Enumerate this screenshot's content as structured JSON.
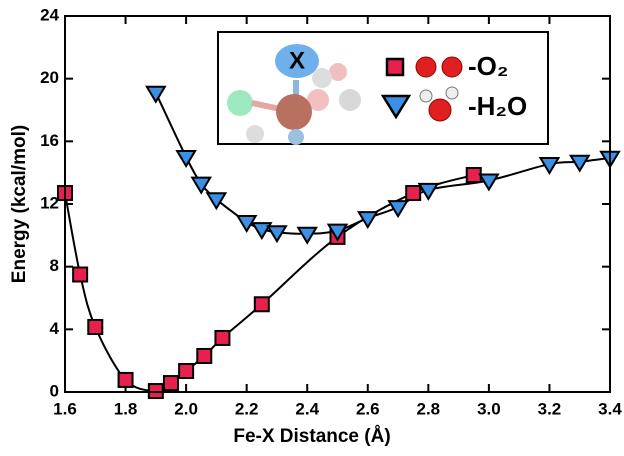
{
  "chart_data": {
    "type": "line",
    "x_label": "Fe-X Distance (Å)",
    "y_label": "Energy (kcal/mol)",
    "inset_label": "X",
    "xlim": [
      1.6,
      3.4
    ],
    "ylim": [
      0,
      24
    ],
    "xticks": [
      1.6,
      1.8,
      {
        "value": 2,
        "label": "2.0"
      },
      2.2,
      2.4,
      2.6,
      2.8,
      {
        "value": 3,
        "label": "3.0"
      },
      3.2,
      3.4
    ],
    "yticks": [
      0,
      4,
      8,
      12,
      16,
      20,
      24
    ],
    "series": [
      {
        "name": "-O₂",
        "marker": "square",
        "color": "#e8204f",
        "x": [
          1.6,
          1.65,
          1.7,
          1.8,
          1.9,
          1.95,
          2.0,
          2.06,
          2.12,
          2.25,
          2.5,
          2.75,
          2.95
        ],
        "values": [
          12.7,
          7.5,
          4.15,
          0.77,
          0.06,
          0.57,
          1.34,
          2.3,
          3.45,
          5.6,
          9.9,
          12.7,
          13.85
        ]
      },
      {
        "name": "-H₂O",
        "marker": "triangle",
        "color": "#3a8fe6",
        "x": [
          1.9,
          2.0,
          2.05,
          2.1,
          2.2,
          2.25,
          2.3,
          2.4,
          2.5,
          2.6,
          2.7,
          2.8,
          3.0,
          3.2,
          3.3,
          3.4
        ],
        "values": [
          19.1,
          15.0,
          13.3,
          12.3,
          10.85,
          10.4,
          10.2,
          10.1,
          10.3,
          11.1,
          11.8,
          12.9,
          13.5,
          14.55,
          14.7,
          14.95
        ]
      }
    ]
  }
}
